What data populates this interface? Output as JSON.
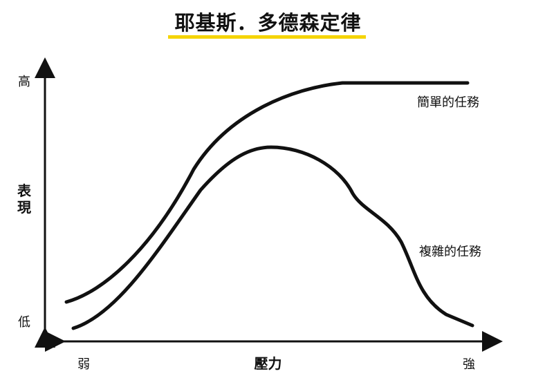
{
  "title": "耶基斯．多德森定律",
  "accent_color": "#f5d400",
  "y_axis": {
    "label": "表現",
    "high": "高",
    "low": "低"
  },
  "x_axis": {
    "label": "壓力",
    "low": "弱",
    "high": "強"
  },
  "curves": [
    {
      "name": "簡單的任務",
      "shape": "sigmoid-rise-then-plateau"
    },
    {
      "name": "複雜的任務",
      "shape": "inverted-u"
    }
  ]
}
